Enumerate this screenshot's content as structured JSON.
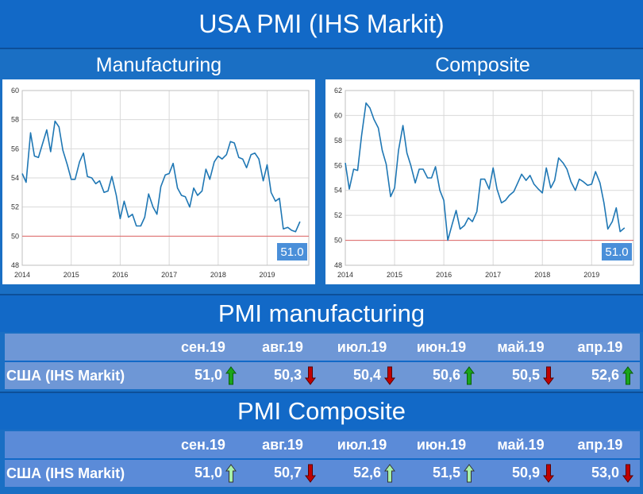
{
  "header": {
    "title": "USA PMI (IHS Markit)"
  },
  "charts": {
    "left_title": "Manufacturing",
    "right_title": "Composite"
  },
  "chart_data": [
    {
      "type": "line",
      "title": "Manufacturing",
      "ylim": [
        48,
        60
      ],
      "yticks": [
        "48",
        "50",
        "52",
        "54",
        "56",
        "58",
        "60"
      ],
      "xlim": [
        2014.0,
        2019.85
      ],
      "xticks": [
        "2014",
        "2015",
        "2016",
        "2017",
        "2018",
        "2019"
      ],
      "reference_line": 50,
      "last_value_label": "51.0",
      "grid": true,
      "series": [
        {
          "color": "#1f77b4",
          "x": [
            2014.0,
            2014.08,
            2014.17,
            2014.25,
            2014.33,
            2014.42,
            2014.5,
            2014.58,
            2014.67,
            2014.75,
            2014.83,
            2014.92,
            2015.0,
            2015.08,
            2015.17,
            2015.25,
            2015.33,
            2015.42,
            2015.5,
            2015.58,
            2015.67,
            2015.75,
            2015.83,
            2015.92,
            2016.0,
            2016.08,
            2016.17,
            2016.25,
            2016.33,
            2016.42,
            2016.5,
            2016.58,
            2016.67,
            2016.75,
            2016.83,
            2016.92,
            2017.0,
            2017.08,
            2017.17,
            2017.25,
            2017.33,
            2017.42,
            2017.5,
            2017.58,
            2017.67,
            2017.75,
            2017.83,
            2017.92,
            2018.0,
            2018.08,
            2018.17,
            2018.25,
            2018.33,
            2018.42,
            2018.5,
            2018.58,
            2018.67,
            2018.75,
            2018.83,
            2018.92,
            2019.0,
            2019.08,
            2019.17,
            2019.25,
            2019.33,
            2019.42,
            2019.5,
            2019.58,
            2019.67
          ],
          "values": [
            54.3,
            53.7,
            57.1,
            55.5,
            55.4,
            56.4,
            57.3,
            55.8,
            57.9,
            57.5,
            55.9,
            54.9,
            53.9,
            53.9,
            55.1,
            55.7,
            54.1,
            54.0,
            53.6,
            53.8,
            53.0,
            53.1,
            54.1,
            52.8,
            51.2,
            52.4,
            51.3,
            51.5,
            50.7,
            50.7,
            51.3,
            52.9,
            52.0,
            51.5,
            53.4,
            54.2,
            54.3,
            55.0,
            53.3,
            52.8,
            52.7,
            52.0,
            53.3,
            52.8,
            53.1,
            54.6,
            53.9,
            55.1,
            55.5,
            55.3,
            55.6,
            56.5,
            56.4,
            55.4,
            55.3,
            54.7,
            55.6,
            55.7,
            55.3,
            53.8,
            54.9,
            53.0,
            52.4,
            52.6,
            50.5,
            50.6,
            50.4,
            50.3,
            51.0
          ]
        }
      ]
    },
    {
      "type": "line",
      "title": "Composite",
      "ylim": [
        48,
        62
      ],
      "yticks": [
        "48",
        "50",
        "52",
        "54",
        "56",
        "58",
        "60",
        "62"
      ],
      "xlim": [
        2014.0,
        2019.85
      ],
      "xticks": [
        "2014",
        "2015",
        "2016",
        "2017",
        "2018",
        "2019"
      ],
      "reference_line": 50,
      "last_value_label": "51.0",
      "grid": true,
      "series": [
        {
          "color": "#1f77b4",
          "x": [
            2014.0,
            2014.08,
            2014.17,
            2014.25,
            2014.33,
            2014.42,
            2014.5,
            2014.58,
            2014.67,
            2014.75,
            2014.83,
            2014.92,
            2015.0,
            2015.08,
            2015.17,
            2015.25,
            2015.33,
            2015.42,
            2015.5,
            2015.58,
            2015.67,
            2015.75,
            2015.83,
            2015.92,
            2016.0,
            2016.08,
            2016.17,
            2016.25,
            2016.33,
            2016.42,
            2016.5,
            2016.58,
            2016.67,
            2016.75,
            2016.83,
            2016.92,
            2017.0,
            2017.08,
            2017.17,
            2017.25,
            2017.33,
            2017.42,
            2017.5,
            2017.58,
            2017.67,
            2017.75,
            2017.83,
            2017.92,
            2018.0,
            2018.08,
            2018.17,
            2018.25,
            2018.33,
            2018.42,
            2018.5,
            2018.58,
            2018.67,
            2018.75,
            2018.83,
            2018.92,
            2019.0,
            2019.08,
            2019.17,
            2019.25,
            2019.33,
            2019.42,
            2019.5,
            2019.58,
            2019.67
          ],
          "values": [
            56.2,
            54.1,
            55.7,
            55.6,
            58.4,
            61.0,
            60.6,
            59.7,
            59.0,
            57.2,
            56.1,
            53.5,
            54.2,
            57.2,
            59.2,
            57.0,
            56.0,
            54.6,
            55.7,
            55.7,
            55.0,
            55.0,
            55.9,
            54.0,
            53.2,
            50.0,
            51.3,
            52.4,
            50.9,
            51.2,
            51.8,
            51.5,
            52.3,
            54.9,
            54.9,
            54.1,
            55.8,
            54.1,
            53.0,
            53.2,
            53.6,
            53.9,
            54.6,
            55.3,
            54.8,
            55.2,
            54.5,
            54.1,
            53.8,
            55.8,
            54.2,
            54.8,
            56.6,
            56.2,
            55.7,
            54.7,
            54.0,
            54.9,
            54.7,
            54.4,
            54.5,
            55.5,
            54.6,
            53.0,
            50.9,
            51.5,
            52.6,
            50.7,
            51.0
          ]
        }
      ]
    }
  ],
  "sections": {
    "manufacturing_title": "PMI manufacturing",
    "composite_title": "PMI Composite"
  },
  "tables": {
    "manufacturing": {
      "months": [
        "сен.19",
        "авг.19",
        "июл.19",
        "июн.19",
        "май.19",
        "апр.19"
      ],
      "row_label": "США (IHS Markit)",
      "values": [
        "51,0",
        "50,3",
        "50,4",
        "50,6",
        "50,5",
        "52,6"
      ],
      "arrows": [
        "up",
        "down",
        "down",
        "up",
        "down",
        "up"
      ]
    },
    "composite": {
      "months": [
        "сен.19",
        "авг.19",
        "июл.19",
        "июн.19",
        "май.19",
        "апр.19"
      ],
      "row_label": "США (IHS Markit)",
      "values": [
        "51,0",
        "50,7",
        "52,6",
        "51,5",
        "50,9",
        "53,0"
      ],
      "arrows": [
        "up",
        "down",
        "up",
        "up",
        "down",
        "down"
      ]
    }
  },
  "colors": {
    "line": "#1f77b4",
    "reference": "#e06666",
    "badge": "#4a8fd9",
    "arrow_up_dark": "#1aa51a",
    "arrow_up_light": "#a8f0a8",
    "arrow_down": "#c00000"
  }
}
